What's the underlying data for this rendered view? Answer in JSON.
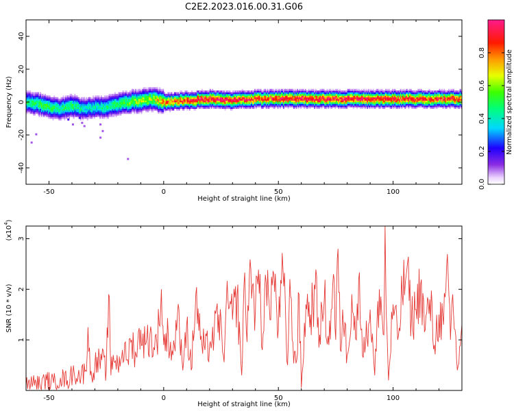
{
  "title": "C2E2.2023.016.00.31.G06",
  "colors": {
    "snr_line": "#e53935",
    "axis": "#000000",
    "background": "#ffffff"
  },
  "chart_data": [
    {
      "type": "heatmap",
      "xlabel": "Height of straight line (km)",
      "ylabel": "Frequency (Hz)",
      "xlim": [
        -60,
        130
      ],
      "ylim": [
        -50,
        50
      ],
      "xticks": [
        -50,
        0,
        50,
        100
      ],
      "yticks": [
        -40,
        -20,
        0,
        20,
        40
      ],
      "colorbar": {
        "label": "Normalized spectral amplitude",
        "range": [
          0,
          1
        ],
        "ticks": [
          0.0,
          0.2,
          0.4,
          0.6,
          0.8
        ],
        "tick_labels": [
          "0.0",
          "0.2",
          "0.4",
          "0.6",
          "0.8"
        ],
        "colormap": "rainbow (white-violet-blue-cyan-green-yellow-red-magenta)"
      },
      "ridge": {
        "x": [
          -60,
          -55,
          -50,
          -45,
          -40,
          -35,
          -30,
          -25,
          -20,
          -15,
          -10,
          -5,
          0,
          10,
          20,
          30,
          40,
          50,
          60,
          70,
          80,
          90,
          100,
          110,
          120,
          130
        ],
        "freq": [
          0,
          -1,
          -3,
          -4,
          -2,
          -4,
          -3,
          -3,
          -1,
          0,
          1,
          2,
          0,
          1,
          2,
          1,
          2,
          2,
          2,
          2,
          2,
          2,
          2,
          2,
          2,
          2
        ],
        "peak_amplitude": [
          0.45,
          0.5,
          0.5,
          0.45,
          0.5,
          0.4,
          0.4,
          0.45,
          0.5,
          0.55,
          0.6,
          0.6,
          0.8,
          0.85,
          0.95,
          0.9,
          0.85,
          0.9,
          0.9,
          0.9,
          0.9,
          0.9,
          0.9,
          0.85,
          0.85,
          0.85
        ]
      }
    },
    {
      "type": "line",
      "xlabel": "Height of straight line (km)",
      "ylabel": "SNR (10 * v/v)",
      "yscale_label": "(x10",
      "yscale_exp": "4",
      "yscale_close": ")",
      "xlim": [
        -60,
        130
      ],
      "ylim": [
        0,
        3.25
      ],
      "xticks": [
        -50,
        0,
        50,
        100
      ],
      "yticks": [
        1,
        2,
        3
      ],
      "series": [
        {
          "x": [
            -60,
            -57,
            -54,
            -51,
            -48,
            -45,
            -42,
            -39,
            -36,
            -34,
            -33,
            -32,
            -30,
            -27,
            -25,
            -24,
            -23,
            -22,
            -20,
            -18,
            -16,
            -14,
            -12,
            -10,
            -8,
            -6,
            -4,
            -2,
            -1,
            0,
            2,
            4,
            6,
            8,
            10,
            12,
            14,
            16,
            18,
            20,
            22,
            24,
            26,
            28,
            30,
            32,
            34,
            35,
            36,
            38,
            40,
            42,
            43,
            44,
            46,
            48,
            50,
            52,
            54,
            55,
            56,
            58,
            59,
            60,
            62,
            64,
            66,
            68,
            70,
            72,
            74,
            75,
            76,
            77,
            78,
            80,
            82,
            84,
            85,
            86,
            88,
            90,
            92,
            94,
            96,
            96.5,
            97,
            98,
            100,
            102,
            104,
            106,
            108,
            110,
            112,
            114,
            116,
            118,
            120,
            122,
            124,
            125,
            126,
            128,
            130
          ],
          "y": [
            0.1,
            0.15,
            0.12,
            0.2,
            0.15,
            0.25,
            0.2,
            0.35,
            0.3,
            0.4,
            1.25,
            0.3,
            0.5,
            0.6,
            0.4,
            1.9,
            0.3,
            0.7,
            0.5,
            0.8,
            0.6,
            1.0,
            0.7,
            1.2,
            0.9,
            1.1,
            0.8,
            1.3,
            2.0,
            0.9,
            1.1,
            0.7,
            1.5,
            0.6,
            1.3,
            0.4,
            1.9,
            1.0,
            0.8,
            0.9,
            1.1,
            1.5,
            0.7,
            1.8,
            1.4,
            1.9,
            0.3,
            2.1,
            1.2,
            2.4,
            1.6,
            2.3,
            0.8,
            2.0,
            1.7,
            2.3,
            1.2,
            2.4,
            0.5,
            2.2,
            1.0,
            0.6,
            1.9,
            0.05,
            1.7,
            1.5,
            2.0,
            1.1,
            1.8,
            0.9,
            2.3,
            1.0,
            2.8,
            0.8,
            1.6,
            0.7,
            1.9,
            1.0,
            2.2,
            1.2,
            0.9,
            1.6,
            0.3,
            2.0,
            1.1,
            3.25,
            1.5,
            0.2,
            1.7,
            1.0,
            1.9,
            2.4,
            1.4,
            1.6,
            2.1,
            1.2,
            1.8,
            0.9,
            1.5,
            1.3,
            2.3,
            1.0,
            1.9,
            0.4,
            1.3
          ]
        }
      ]
    }
  ]
}
